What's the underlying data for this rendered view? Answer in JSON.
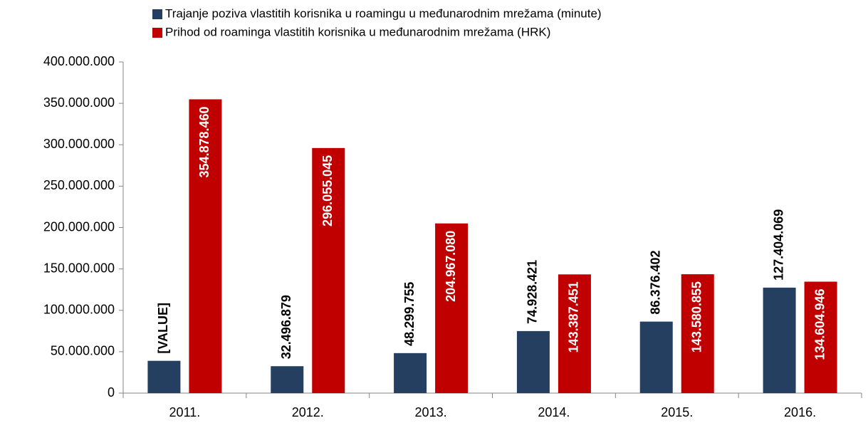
{
  "chart_data": {
    "type": "bar",
    "categories": [
      "2011.",
      "2012.",
      "2013.",
      "2014.",
      "2015.",
      "2016."
    ],
    "series": [
      {
        "name": "Trajanje poziva vlastitih korisnika u roamingu u međunarodnim mrežama (minute)",
        "color": "#243f60",
        "values": [
          39000000,
          32496879,
          48299755,
          74928421,
          86376402,
          127404069
        ],
        "value_labels": [
          "[VALUE]",
          "32.496.879",
          "48.299.755",
          "74.928.421",
          "86.376.402",
          "127.404.069"
        ]
      },
      {
        "name": "Prihod od roaminga vlastitih korisnika u međunarodnim mrežama (HRK)",
        "color": "#c00000",
        "values": [
          354878460,
          296055045,
          204967080,
          143387451,
          143580855,
          134604946
        ],
        "value_labels": [
          "354.878.460",
          "296.055.045",
          "204.967.080",
          "143.387.451",
          "143.580.855",
          "134.604.946"
        ]
      }
    ],
    "ylim": [
      0,
      400000000
    ],
    "yticks": [
      0,
      {
        "value": 50000000,
        "label": "50.000.000"
      },
      {
        "value": 100000000,
        "label": "100.000.000"
      },
      {
        "value": 150000000,
        "label": "150.000.000"
      },
      {
        "value": 200000000,
        "label": "200.000.000"
      },
      {
        "value": 250000000,
        "label": "250.000.000"
      },
      {
        "value": 300000000,
        "label": "300.000.000"
      },
      {
        "value": 350000000,
        "label": "350.000.000"
      },
      {
        "value": 400000000,
        "label": "400.000.000"
      }
    ],
    "legend": "top"
  }
}
